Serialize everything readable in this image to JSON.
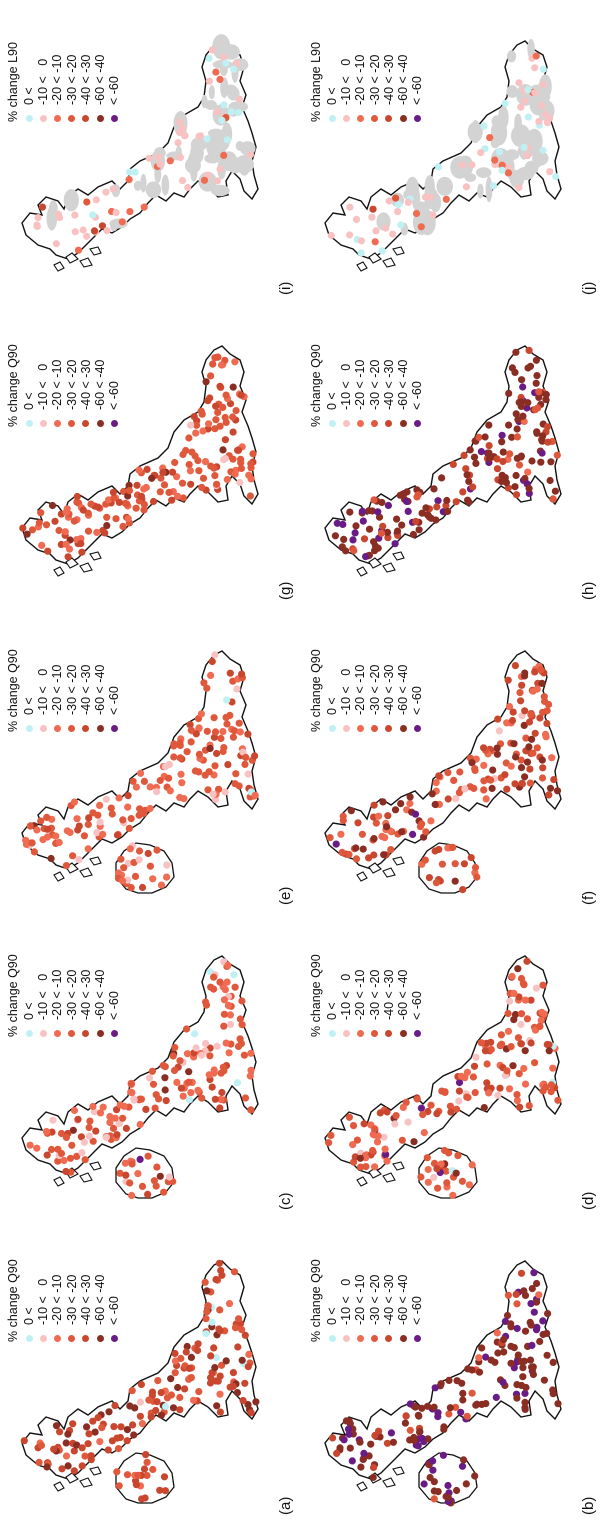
{
  "colors": {
    "class_colors": [
      "#bff1f4",
      "#f9c2c2",
      "#ef6b52",
      "#e0583c",
      "#c9472f",
      "#8a2e24",
      "#6a1c86"
    ],
    "outline": "#111111",
    "grey_fill": "#d3d3d3"
  },
  "legend": {
    "classes": [
      "0 <   ",
      "-10 <   0",
      "-20 < -10",
      "-30 < -20",
      "-40 < -30",
      "-60 < -40",
      "< -60"
    ]
  },
  "panels": [
    {
      "id": "a",
      "label": "(a)",
      "legend_title": "% change Q90",
      "ireland": true,
      "grey": false,
      "dist": [
        0.01,
        0.02,
        0.08,
        0.28,
        0.45,
        0.16,
        0.0
      ]
    },
    {
      "id": "b",
      "label": "(b)",
      "legend_title": "% change Q90",
      "ireland": true,
      "grey": false,
      "dist": [
        0.0,
        0.0,
        0.01,
        0.03,
        0.08,
        0.55,
        0.33
      ]
    },
    {
      "id": "c",
      "label": "(c)",
      "legend_title": "% change Q90",
      "ireland": true,
      "grey": false,
      "dist": [
        0.02,
        0.1,
        0.3,
        0.4,
        0.13,
        0.04,
        0.01
      ]
    },
    {
      "id": "d",
      "label": "(d)",
      "legend_title": "% change Q90",
      "ireland": true,
      "grey": false,
      "dist": [
        0.01,
        0.04,
        0.22,
        0.38,
        0.22,
        0.09,
        0.04
      ]
    },
    {
      "id": "e",
      "label": "(e)",
      "legend_title": "% change Q90",
      "ireland": true,
      "grey": false,
      "dist": [
        0.01,
        0.08,
        0.3,
        0.45,
        0.12,
        0.04,
        0.0
      ]
    },
    {
      "id": "f",
      "label": "(f)",
      "legend_title": "% change Q90",
      "ireland": true,
      "grey": false,
      "dist": [
        0.0,
        0.03,
        0.14,
        0.32,
        0.28,
        0.2,
        0.03
      ]
    },
    {
      "id": "g",
      "label": "(g)",
      "legend_title": "% change Q90",
      "ireland": false,
      "grey": false,
      "dist": [
        0.0,
        0.02,
        0.22,
        0.42,
        0.26,
        0.08,
        0.0
      ]
    },
    {
      "id": "h",
      "label": "(h)",
      "legend_title": "% change Q90",
      "ireland": false,
      "grey": false,
      "dist": [
        0.0,
        0.0,
        0.02,
        0.08,
        0.15,
        0.55,
        0.2
      ]
    },
    {
      "id": "i",
      "label": "(i)",
      "legend_title": "% change L90",
      "ireland": false,
      "grey": true,
      "dist": [
        0.12,
        0.55,
        0.22,
        0.08,
        0.03,
        0.0,
        0.0
      ]
    },
    {
      "id": "j",
      "label": "(j)",
      "legend_title": "% change L90",
      "ireland": false,
      "grey": true,
      "dist": [
        0.18,
        0.55,
        0.18,
        0.07,
        0.02,
        0.0,
        0.0
      ]
    }
  ]
}
